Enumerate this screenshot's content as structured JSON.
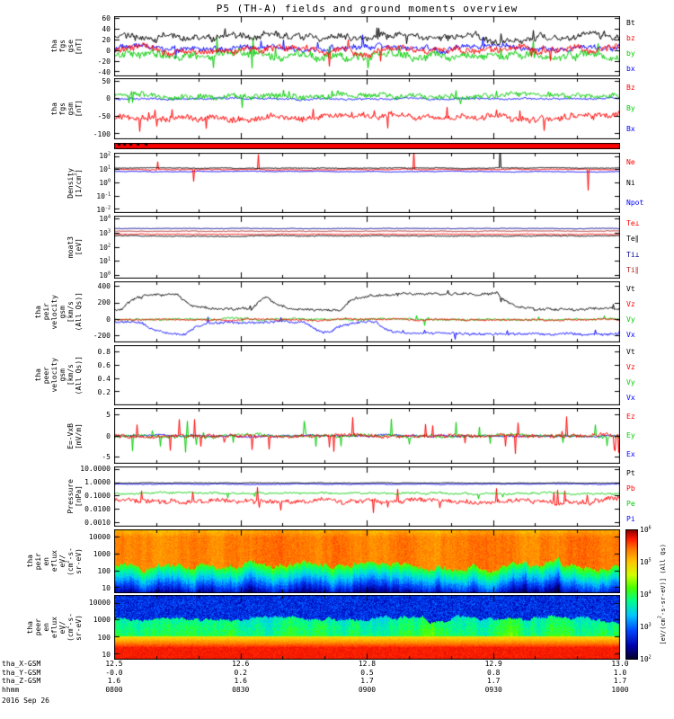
{
  "title": "P5 (TH-A) fields and ground moments overview",
  "chart_data": {
    "type": "multi-panel-timeseries",
    "date": "2016 Sep 26",
    "time_ticks": [
      "0800",
      "0830",
      "0900",
      "0930",
      "1000"
    ],
    "panels": [
      {
        "id": "fgs_gse",
        "kind": "line",
        "ylabel_lines": [
          "tha",
          "fgs",
          "gse",
          "[nT]"
        ],
        "yticks": [
          "60",
          "40",
          "20",
          "0",
          "-20",
          "-40"
        ],
        "ytick_values": [
          60,
          40,
          20,
          0,
          -20,
          -40
        ],
        "ylim": [
          -48,
          64
        ],
        "legend": [
          {
            "label": "Bt",
            "color": "#000000"
          },
          {
            "label": "bz",
            "color": "#ff0000"
          },
          {
            "label": "by",
            "color": "#00cc00"
          },
          {
            "label": "bx",
            "color": "#0000ff"
          }
        ],
        "series": [
          {
            "name": "bx",
            "color": "#0000ff",
            "base": 5,
            "walk": 4,
            "noise": 8,
            "spike": 0.012,
            "spikeAmp": 14
          },
          {
            "name": "by",
            "color": "#00cc00",
            "base": -8,
            "walk": 5,
            "noise": 12,
            "spike": 0.02,
            "spikeAmp": 22
          },
          {
            "name": "bz",
            "color": "#ff0000",
            "base": 0,
            "walk": 5,
            "noise": 10,
            "spike": 0.015,
            "spikeAmp": 15
          },
          {
            "name": "Bt",
            "color": "#000000",
            "base": 24,
            "walk": 6,
            "noise": 9,
            "spike": 0.01,
            "spikeAmp": 16
          }
        ]
      },
      {
        "id": "fgs_gsm",
        "kind": "line",
        "ylabel_lines": [
          "tha",
          "fgs",
          "gsm",
          "[nT]"
        ],
        "yticks": [
          "50",
          "0",
          "-50",
          "-100"
        ],
        "ytick_values": [
          50,
          0,
          -50,
          -100
        ],
        "ylim": [
          -115,
          58
        ],
        "legend": [
          {
            "label": "Bz",
            "color": "#ff0000"
          },
          {
            "label": "By",
            "color": "#00cc00"
          },
          {
            "label": "Bx",
            "color": "#0000ff"
          }
        ],
        "series": [
          {
            "name": "Bx",
            "color": "#0000ff",
            "base": 0,
            "walk": 2,
            "noise": 4
          },
          {
            "name": "By",
            "color": "#00cc00",
            "base": 8,
            "walk": 5,
            "noise": 13,
            "spike": 0.02,
            "spikeAmp": 20
          },
          {
            "name": "Bz",
            "color": "#ff0000",
            "base": -52,
            "walk": 7,
            "noise": 15,
            "spike": 0.02,
            "spikeAmp": 25
          }
        ]
      },
      {
        "id": "flag_bar",
        "kind": "bar",
        "color": "#ff0000",
        "mark_color": "#000000"
      },
      {
        "id": "density",
        "kind": "log",
        "ylabel_lines": [
          "Density",
          "[1/cm^3]"
        ],
        "yticks": [
          "10^2",
          "10^1",
          "10^0",
          "10^-1",
          "10^-2"
        ],
        "ytick_values": [
          2,
          1,
          0,
          -1,
          -2
        ],
        "ylog": [
          -2.25,
          2.25
        ],
        "legend": [
          {
            "label": "Ne",
            "color": "#ff0000"
          },
          {
            "label": "Ni",
            "color": "#000000"
          },
          {
            "label": "Npot",
            "color": "#0000ff"
          }
        ],
        "series": [
          {
            "name": "Npot",
            "color": "#0000ff",
            "base": 0.85,
            "walk": 0.02,
            "noise": 0.03
          },
          {
            "name": "Ne",
            "color": "#ff0000",
            "base": 1.0,
            "walk": 0.025,
            "noise": 0.05,
            "spike": 0.005,
            "spikeAmp": 1.2
          },
          {
            "name": "Ni",
            "color": "#000000",
            "base": 1.1,
            "walk": 0.02,
            "noise": 0.04,
            "spike": 0.005,
            "spikeAmp": 1.2
          }
        ]
      },
      {
        "id": "moat3",
        "kind": "log",
        "ylabel_lines": [
          "moat3",
          "[eV]"
        ],
        "yticks": [
          "10^4",
          "10^3",
          "10^2",
          "10^1",
          "10^0"
        ],
        "ytick_values": [
          4,
          3,
          2,
          1,
          0
        ],
        "ylog": [
          -0.2,
          4.2
        ],
        "legend": [
          {
            "label": "Te⊥",
            "color": "#ff0000"
          },
          {
            "label": "Te∥",
            "color": "#000000"
          },
          {
            "label": "Ti⊥",
            "color": "#000090"
          },
          {
            "label": "Ti∥",
            "color": "#b22222"
          }
        ],
        "series": [
          {
            "name": "Ti⊥",
            "color": "#000090",
            "base": 3.3,
            "walk": 0.015,
            "noise": 0.03
          },
          {
            "name": "Ti∥",
            "color": "#b22222",
            "base": 3.12,
            "walk": 0.015,
            "noise": 0.04
          },
          {
            "name": "Te⊥",
            "color": "#ff0000",
            "base": 2.9,
            "walk": 0.02,
            "noise": 0.05
          },
          {
            "name": "Te∥",
            "color": "#000000",
            "base": 2.78,
            "walk": 0.02,
            "noise": 0.05
          }
        ]
      },
      {
        "id": "peir_velocity",
        "kind": "line",
        "ylabel_lines": [
          "tha",
          "peir",
          "velocity",
          "gsm",
          "[km/s",
          "(All Qs)]"
        ],
        "yticks": [
          "400",
          "200",
          "0",
          "-200"
        ],
        "ytick_values": [
          400,
          200,
          0,
          -200
        ],
        "ylim": [
          -280,
          460
        ],
        "legend": [
          {
            "label": "Vt",
            "color": "#000000"
          },
          {
            "label": "Vz",
            "color": "#ff0000"
          },
          {
            "label": "Vy",
            "color": "#00cc00"
          },
          {
            "label": "Vx",
            "color": "#0000ff"
          }
        ],
        "series": [
          {
            "name": "Vx",
            "color": "#0000ff",
            "base": -30,
            "walk": 10,
            "noise": 25,
            "plateau": -150,
            "plateauProb": 0.012,
            "spike": 0.01,
            "spikeAmp": 60
          },
          {
            "name": "Vy",
            "color": "#00cc00",
            "base": 0,
            "walk": 8,
            "noise": 20,
            "spike": 0.01,
            "spikeAmp": 50
          },
          {
            "name": "Vz",
            "color": "#ff0000",
            "base": -5,
            "walk": 6,
            "noise": 18
          },
          {
            "name": "Vt",
            "color": "#000000",
            "base": 120,
            "walk": 12,
            "noise": 25,
            "plateau": 190,
            "plateauProb": 0.012,
            "spike": 0.01,
            "spikeAmp": 50
          }
        ]
      },
      {
        "id": "peer_velocity",
        "kind": "line",
        "ylabel_lines": [
          "tha",
          "peer",
          "velocity",
          "gsm",
          "[km/s",
          "(All Qs)]"
        ],
        "yticks": [
          "0.8",
          "0.6",
          "0.4",
          "0.2"
        ],
        "ytick_values": [
          0.8,
          0.6,
          0.4,
          0.2
        ],
        "ylim": [
          0,
          0.9
        ],
        "legend": [
          {
            "label": "Vt",
            "color": "#000000"
          },
          {
            "label": "Vz",
            "color": "#ff0000"
          },
          {
            "label": "Vy",
            "color": "#00cc00"
          },
          {
            "label": "Vx",
            "color": "#0000ff"
          }
        ],
        "series": []
      },
      {
        "id": "efield",
        "kind": "line",
        "ylabel_lines": [
          "E=-VxB",
          "[mV/m]"
        ],
        "yticks": [
          "5",
          "0",
          "-5"
        ],
        "ytick_values": [
          5,
          0,
          -5
        ],
        "ylim": [
          -6.5,
          6.5
        ],
        "legend": [
          {
            "label": "Ez",
            "color": "#ff0000"
          },
          {
            "label": "Ey",
            "color": "#00cc00"
          },
          {
            "label": "Ex",
            "color": "#0000ff"
          }
        ],
        "series": [
          {
            "name": "Ex",
            "color": "#0000ff",
            "base": 0,
            "walk": 0.15,
            "noise": 0.35
          },
          {
            "name": "Ey",
            "color": "#00cc00",
            "base": 0,
            "walk": 0.2,
            "noise": 0.7,
            "spike": 0.03,
            "spikeAmp": 3
          },
          {
            "name": "Ez",
            "color": "#ff0000",
            "base": 0,
            "walk": 0.2,
            "noise": 0.8,
            "spike": 0.04,
            "spikeAmp": 3
          }
        ]
      },
      {
        "id": "pressure",
        "kind": "log",
        "ylabel_lines": [
          "Pressure",
          "[nPa]"
        ],
        "yticks": [
          "10.0000",
          "1.0000",
          "0.1000",
          "0.0100",
          "0.0010"
        ],
        "ytick_values": [
          1,
          0,
          -1,
          -2,
          -3
        ],
        "ylog": [
          -3.3,
          1.2
        ],
        "legend": [
          {
            "label": "Pt",
            "color": "#000000"
          },
          {
            "label": "Pb",
            "color": "#ff0000"
          },
          {
            "label": "Pe",
            "color": "#00cc00"
          },
          {
            "label": "Pi",
            "color": "#0000ff"
          }
        ],
        "series": [
          {
            "name": "Pb",
            "color": "#ff0000",
            "base": -1.4,
            "walk": 0.12,
            "noise": 0.3,
            "spike": 0.03,
            "spikeAmp": 0.8
          },
          {
            "name": "Pe",
            "color": "#00cc00",
            "base": -0.8,
            "walk": 0.05,
            "noise": 0.12,
            "spike": 0.01,
            "spikeAmp": 0.4
          },
          {
            "name": "Pi",
            "color": "#0000ff",
            "base": -0.12,
            "walk": 0.02,
            "noise": 0.04
          },
          {
            "name": "Pt",
            "color": "#000000",
            "base": -0.04,
            "walk": 0.015,
            "noise": 0.03
          }
        ]
      },
      {
        "id": "peir_en_eflux",
        "kind": "spec",
        "model": "ion",
        "ylabel_lines": [
          "tha",
          "peir",
          "en",
          "eflux",
          "eV/",
          "(cm^2-s-",
          "sr-eV)"
        ],
        "yticks": [
          "10000",
          "1000",
          "100",
          "10"
        ],
        "ytick_values": [
          4,
          3,
          2,
          1
        ],
        "ylog": [
          0.7,
          4.45
        ],
        "boundary": [
          1.5,
          3.1
        ],
        "hot": 0.84,
        "cold": 0.55
      },
      {
        "id": "peer_en_eflux",
        "kind": "spec",
        "model": "electron",
        "ylabel_lines": [
          "tha",
          "peer",
          "en",
          "eflux",
          "eV/",
          "(cm^2-s-",
          "sr-eV)"
        ],
        "yticks": [
          "10000",
          "1000",
          "100",
          "10"
        ],
        "ytick_values": [
          4,
          3,
          2,
          1
        ],
        "ylog": [
          0.7,
          4.45
        ],
        "band_top": [
          2.6,
          3.6
        ],
        "low": 0.93
      }
    ],
    "xaxis": {
      "rows": [
        {
          "label": "tha_X-GSM",
          "values": [
            "12.5",
            "12.6",
            "12.8",
            "12.9",
            "13.0"
          ]
        },
        {
          "label": "tha_Y-GSM",
          "values": [
            "-0.0",
            "0.2",
            "0.5",
            "0.8",
            "1.0"
          ]
        },
        {
          "label": "tha_Z-GSM",
          "values": [
            "1.6",
            "1.6",
            "1.7",
            "1.7",
            "1.7"
          ]
        },
        {
          "label": "hhmm",
          "values": [
            "0800",
            "0830",
            "0900",
            "0930",
            "1000"
          ]
        }
      ]
    },
    "colorbar": {
      "ticks": [
        "10^6",
        "10^5",
        "10^4",
        "10^3",
        "10^2"
      ],
      "label": "[eV/(cm^2-s-sr-eV)] (All Qs)"
    }
  }
}
